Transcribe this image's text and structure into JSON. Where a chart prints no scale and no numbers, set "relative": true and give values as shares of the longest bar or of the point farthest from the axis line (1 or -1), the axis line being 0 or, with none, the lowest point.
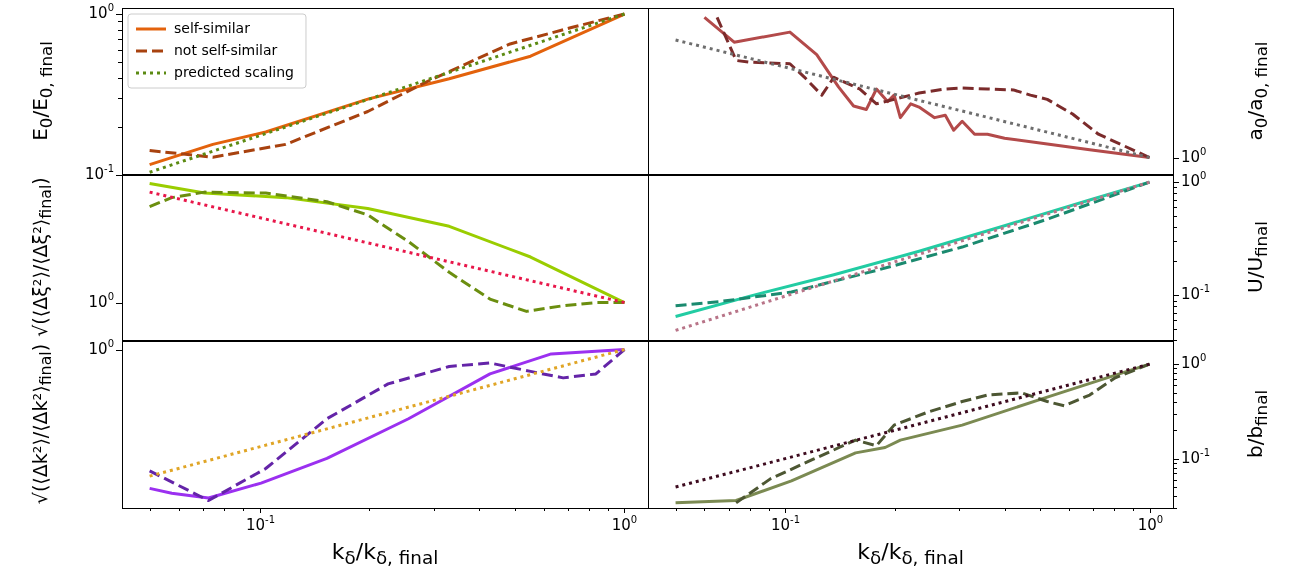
{
  "chart_data": [
    {
      "type": "line",
      "ylabel": "E$_{0}$/E$_{0, final}$",
      "log": "xy",
      "tick_labels": "y",
      "legend": "top left",
      "xlim": [
        0.042,
        1.16
      ],
      "ylim": [
        0.1,
        1.09
      ],
      "yticks": [
        {
          "value": 0.1,
          "label": "10$^{-1}$"
        },
        {
          "value": 0.2,
          "label": null
        },
        {
          "value": 0.3,
          "label": null
        },
        {
          "value": 0.4,
          "label": null
        },
        {
          "value": 0.5,
          "label": null
        },
        {
          "value": 0.6,
          "label": null
        },
        {
          "value": 0.7,
          "label": null
        },
        {
          "value": 0.8,
          "label": null
        },
        {
          "value": 0.9,
          "label": null
        },
        {
          "value": 1,
          "label": "10$^{0}$"
        }
      ],
      "series": [
        {
          "name": "self-similar",
          "color": "#e3620c",
          "line_style": "solid",
          "x": [
            0.05,
            0.0745,
            0.104,
            0.198,
            0.331,
            0.553,
            1
          ],
          "values": [
            0.116,
            0.155,
            0.185,
            0.296,
            0.396,
            0.547,
            1
          ]
        },
        {
          "name": "not self-similar",
          "color": "#a8420f",
          "line_style": "dashed",
          "x": [
            0.05,
            0.0745,
            0.118,
            0.198,
            0.291,
            0.486,
            0.716,
            1
          ],
          "values": [
            0.142,
            0.129,
            0.155,
            0.248,
            0.385,
            0.652,
            0.824,
            1
          ]
        },
        {
          "name": "predicted scaling",
          "color": "#5b8a12",
          "line_style": "dotted",
          "x": [
            0.05,
            1
          ],
          "values": [
            0.104,
            1
          ]
        }
      ]
    },
    {
      "type": "line",
      "ylabel": "a$_{0}$/a$_{0, final}$",
      "log": "x",
      "relative": true,
      "tick_labels": "y",
      "xlim": [
        0.042,
        1.16
      ],
      "annotations": [
        "10$^{0}$"
      ],
      "series": [
        {
          "color": "#b34a4a",
          "line_style": "solid",
          "x": [
            0.06,
            0.0724,
            0.103,
            0.122,
            0.14,
            0.154,
            0.167,
            0.178,
            0.191,
            0.199,
            0.207,
            0.221,
            0.233,
            0.257,
            0.275,
            0.29,
            0.306,
            0.331,
            0.359,
            0.4,
            0.524,
            0.685,
            1
          ],
          "values": [
            1,
            0.843,
            0.907,
            0.764,
            0.559,
            0.438,
            0.416,
            0.546,
            0.466,
            0.507,
            0.364,
            0.452,
            0.431,
            0.364,
            0.379,
            0.284,
            0.341,
            0.259,
            0.259,
            0.233,
            0.197,
            0.16,
            0.111
          ]
        },
        {
          "color": "#7b2b2b",
          "line_style": "dashed",
          "x": [
            0.065,
            0.0733,
            0.0796,
            0.103,
            0.113,
            0.126,
            0.136,
            0.16,
            0.178,
            0.199,
            0.233,
            0.275,
            0.306,
            0.359,
            0.423,
            0.471,
            0.524,
            0.615,
            0.724,
            1
          ],
          "values": [
            1,
            0.727,
            0.716,
            0.706,
            0.62,
            0.507,
            0.62,
            0.546,
            0.452,
            0.48,
            0.52,
            0.546,
            0.552,
            0.546,
            0.54,
            0.507,
            0.48,
            0.387,
            0.259,
            0.111
          ]
        },
        {
          "color": "#6e6e6e",
          "line_style": "dotted",
          "x": [
            0.05,
            1
          ],
          "values": [
            0.857,
            0.111
          ]
        }
      ]
    },
    {
      "type": "line",
      "ylabel": "√(⟨Δξ²⟩/⟨Δξ²⟩$_{final}$)",
      "log": "x",
      "relative": true,
      "tick_labels": "y",
      "xlim": [
        0.042,
        1.16
      ],
      "annotations": [
        "10$^{0}$"
      ],
      "series": [
        {
          "color": "#9acd00",
          "line_style": "solid",
          "x": [
            0.05,
            0.0707,
            0.118,
            0.198,
            0.331,
            0.553,
            1
          ],
          "values": [
            1,
            0.939,
            0.91,
            0.841,
            0.728,
            0.533,
            0.244
          ]
        },
        {
          "color": "#6b8e0f",
          "line_style": "dashed",
          "x": [
            0.05,
            0.0575,
            0.0707,
            0.104,
            0.153,
            0.198,
            0.256,
            0.331,
            0.428,
            0.539,
            0.679,
            0.835,
            1
          ],
          "values": [
            0.853,
            0.91,
            0.945,
            0.939,
            0.884,
            0.8,
            0.631,
            0.436,
            0.266,
            0.188,
            0.224,
            0.244,
            0.244
          ]
        },
        {
          "color": "#e8174a",
          "line_style": "dotted",
          "x": [
            0.05,
            1
          ],
          "values": [
            0.945,
            0.244
          ]
        }
      ]
    },
    {
      "type": "line",
      "ylabel": "U/U$_{final}$",
      "log": "xy",
      "tick_labels": "y",
      "xlim": [
        0.042,
        1.16
      ],
      "ylim": [
        0.0395,
        1.18
      ],
      "yticks": [
        {
          "value": 0.04,
          "label": null
        },
        {
          "value": 0.05,
          "label": null
        },
        {
          "value": 0.06,
          "label": null
        },
        {
          "value": 0.07,
          "label": null
        },
        {
          "value": 0.08,
          "label": null
        },
        {
          "value": 0.09,
          "label": null
        },
        {
          "value": 0.1,
          "label": "10$^{-1}$"
        },
        {
          "value": 0.2,
          "label": null
        },
        {
          "value": 0.3,
          "label": null
        },
        {
          "value": 0.4,
          "label": null
        },
        {
          "value": 0.5,
          "label": null
        },
        {
          "value": 0.6,
          "label": null
        },
        {
          "value": 0.7,
          "label": null
        },
        {
          "value": 0.8,
          "label": null
        },
        {
          "value": 0.9,
          "label": null
        },
        {
          "value": 1,
          "label": "10$^{0}$"
        }
      ],
      "series": [
        {
          "color": "#22cca3",
          "line_style": "solid",
          "x": [
            0.05,
            0.0796,
            0.136,
            0.233,
            0.4,
            0.685,
            1
          ],
          "values": [
            0.065,
            0.098,
            0.152,
            0.245,
            0.412,
            0.695,
            1
          ]
        },
        {
          "color": "#1b8a6f",
          "line_style": "dashed",
          "x": [
            0.05,
            0.066,
            0.104,
            0.178,
            0.306,
            0.524,
            1
          ],
          "values": [
            0.081,
            0.088,
            0.107,
            0.166,
            0.267,
            0.47,
            1
          ]
        },
        {
          "color": "#b87488",
          "line_style": "dotted",
          "x": [
            0.05,
            1
          ],
          "values": [
            0.049,
            1
          ]
        }
      ]
    },
    {
      "type": "line",
      "xlabel": "k$_{δ}$/k$_{δ, final}$",
      "ylabel": "√(⟨Δk²⟩/⟨Δk²⟩$_{final}$)",
      "log": "x",
      "relative": true,
      "xlim": [
        0.042,
        1.16
      ],
      "xticks": [
        {
          "value": 0.05,
          "label": null
        },
        {
          "value": 0.06,
          "label": null
        },
        {
          "value": 0.07,
          "label": null
        },
        {
          "value": 0.08,
          "label": null
        },
        {
          "value": 0.09,
          "label": null
        },
        {
          "value": 0.1,
          "label": "10$^{-1}$"
        },
        {
          "value": 0.2,
          "label": null
        },
        {
          "value": 0.3,
          "label": null
        },
        {
          "value": 0.4,
          "label": null
        },
        {
          "value": 0.5,
          "label": null
        },
        {
          "value": 0.6,
          "label": null
        },
        {
          "value": 0.7,
          "label": null
        },
        {
          "value": 0.8,
          "label": null
        },
        {
          "value": 0.9,
          "label": null
        },
        {
          "value": 1,
          "label": "10$^{0}$"
        }
      ],
      "annotations": [
        "10$^{0}$"
      ],
      "series": [
        {
          "color": "#9b30f0",
          "line_style": "solid",
          "x": [
            0.05,
            0.0575,
            0.0725,
            0.101,
            0.153,
            0.256,
            0.428,
            0.63,
            1
          ],
          "values": [
            0.124,
            0.093,
            0.063,
            0.157,
            0.313,
            0.563,
            0.846,
            0.972,
            1
          ]
        },
        {
          "color": "#6424a8",
          "line_style": "dashed",
          "x": [
            0.05,
            0.0725,
            0.104,
            0.153,
            0.225,
            0.331,
            0.428,
            0.553,
            0.679,
            0.835,
            1
          ],
          "values": [
            0.234,
            0.047,
            0.249,
            0.563,
            0.783,
            0.893,
            0.915,
            0.862,
            0.821,
            0.846,
            1
          ]
        },
        {
          "color": "#e0a526",
          "line_style": "dotted",
          "x": [
            0.05,
            1
          ],
          "values": [
            0.201,
            1
          ]
        }
      ]
    },
    {
      "type": "line",
      "xlabel": "k$_{δ}$/k$_{δ, final}$",
      "ylabel": "b/b$_{final}$",
      "log": "xy",
      "xlim": [
        0.042,
        1.16
      ],
      "xticks": [
        {
          "value": 0.05,
          "label": null
        },
        {
          "value": 0.06,
          "label": null
        },
        {
          "value": 0.07,
          "label": null
        },
        {
          "value": 0.08,
          "label": null
        },
        {
          "value": 0.09,
          "label": null
        },
        {
          "value": 0.1,
          "label": "10$^{-1}$"
        },
        {
          "value": 0.2,
          "label": null
        },
        {
          "value": 0.3,
          "label": null
        },
        {
          "value": 0.4,
          "label": null
        },
        {
          "value": 0.5,
          "label": null
        },
        {
          "value": 0.6,
          "label": null
        },
        {
          "value": 0.7,
          "label": null
        },
        {
          "value": 0.8,
          "label": null
        },
        {
          "value": 0.9,
          "label": null
        },
        {
          "value": 1,
          "label": "10$^{0}$"
        }
      ],
      "ylim": [
        0.03,
        1.8
      ],
      "yticks": [
        {
          "value": 0.03,
          "label": null
        },
        {
          "value": 0.04,
          "label": null
        },
        {
          "value": 0.05,
          "label": null
        },
        {
          "value": 0.06,
          "label": null
        },
        {
          "value": 0.07,
          "label": null
        },
        {
          "value": 0.08,
          "label": null
        },
        {
          "value": 0.09,
          "label": null
        },
        {
          "value": 0.1,
          "label": "10$^{-1}$"
        },
        {
          "value": 0.2,
          "label": null
        },
        {
          "value": 0.3,
          "label": null
        },
        {
          "value": 0.4,
          "label": null
        },
        {
          "value": 0.5,
          "label": null
        },
        {
          "value": 0.6,
          "label": null
        },
        {
          "value": 0.7,
          "label": null
        },
        {
          "value": 0.8,
          "label": null
        },
        {
          "value": 0.9,
          "label": null
        },
        {
          "value": 1,
          "label": "10$^{0}$"
        }
      ],
      "series": [
        {
          "color": "#7b8a52",
          "line_style": "solid",
          "x": [
            0.05,
            0.0733,
            0.104,
            0.156,
            0.188,
            0.207,
            0.306,
            0.524,
            1
          ],
          "values": [
            0.034,
            0.036,
            0.058,
            0.115,
            0.131,
            0.157,
            0.226,
            0.447,
            1
          ]
        },
        {
          "color": "#4d5733",
          "line_style": "dashed",
          "x": [
            0.0733,
            0.091,
            0.119,
            0.156,
            0.178,
            0.199,
            0.246,
            0.306,
            0.359,
            0.446,
            0.524,
            0.583,
            0.685,
            0.805,
            1
          ],
          "values": [
            0.034,
            0.061,
            0.098,
            0.157,
            0.137,
            0.226,
            0.31,
            0.402,
            0.471,
            0.496,
            0.402,
            0.362,
            0.471,
            0.716,
            1
          ]
        },
        {
          "color": "#3d0b1f",
          "line_style": "dotted",
          "x": [
            0.05,
            1
          ],
          "values": [
            0.05,
            1
          ]
        }
      ]
    }
  ]
}
